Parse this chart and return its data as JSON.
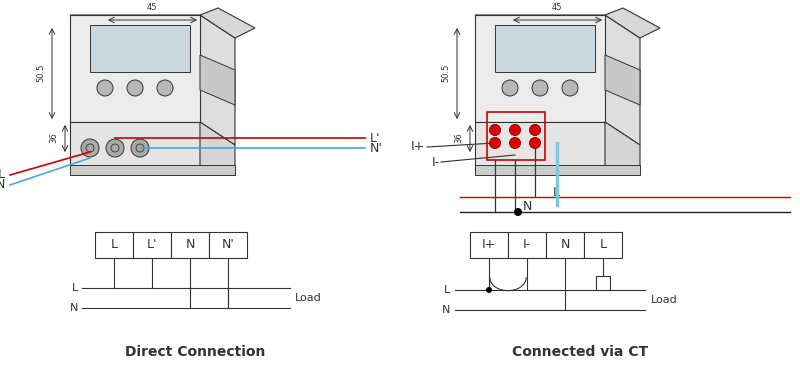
{
  "bg_color": "#ffffff",
  "title_left": "Direct Connection",
  "title_right": "Connected via CT",
  "line_color": "#333333",
  "red_color": "#cc0000",
  "blue_color": "#4da6d6",
  "light_blue": "#7ec8e3",
  "terminal_labels_left": [
    "L",
    "L'",
    "N",
    "N'"
  ],
  "terminal_labels_right": [
    "I+",
    "I-",
    "N",
    "L"
  ],
  "dim_color": "#555555"
}
